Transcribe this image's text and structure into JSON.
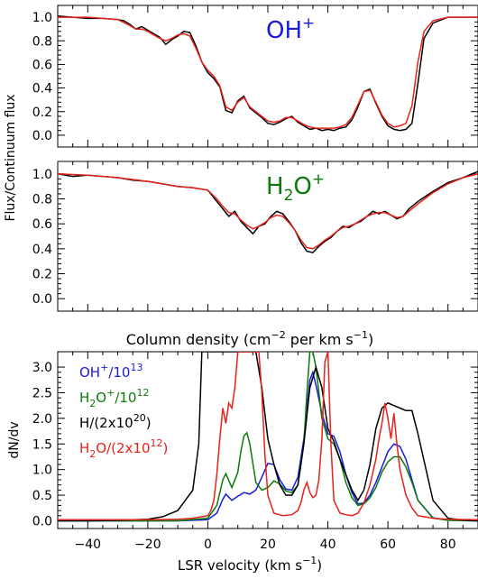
{
  "chart_data": [
    {
      "type": "line",
      "panel": "top",
      "species_label": "OH",
      "species_sup": "+",
      "label_color": "#1a1adc",
      "ylabel": "Flux/Continuum flux",
      "xlim": [
        -50,
        90
      ],
      "ylim": [
        -0.1,
        1.1
      ],
      "yticks": [
        "0.0",
        "0.2",
        "0.4",
        "0.6",
        "0.8",
        "1.0"
      ],
      "series": [
        {
          "color": "#000000",
          "x": [
            -50,
            -45,
            -40,
            -35,
            -30,
            -28,
            -26,
            -24,
            -22,
            -20,
            -18,
            -16,
            -14,
            -12,
            -10,
            -8,
            -6,
            -4,
            -2,
            0,
            2,
            4,
            6,
            8,
            10,
            12,
            14,
            16,
            18,
            20,
            22,
            24,
            26,
            28,
            30,
            32,
            34,
            36,
            38,
            40,
            42,
            44,
            46,
            48,
            50,
            52,
            54,
            56,
            58,
            60,
            62,
            64,
            66,
            68,
            70,
            72,
            75,
            80,
            85,
            90
          ],
          "y": [
            1.01,
            1.0,
            0.99,
            0.99,
            0.98,
            0.97,
            0.94,
            0.9,
            0.92,
            0.89,
            0.86,
            0.83,
            0.77,
            0.81,
            0.84,
            0.88,
            0.87,
            0.76,
            0.62,
            0.53,
            0.48,
            0.41,
            0.21,
            0.19,
            0.29,
            0.33,
            0.23,
            0.19,
            0.15,
            0.1,
            0.09,
            0.11,
            0.14,
            0.16,
            0.11,
            0.08,
            0.05,
            0.06,
            0.04,
            0.05,
            0.04,
            0.06,
            0.07,
            0.13,
            0.24,
            0.37,
            0.39,
            0.27,
            0.16,
            0.08,
            0.05,
            0.04,
            0.05,
            0.1,
            0.44,
            0.82,
            0.95,
            1.0,
            1.0,
            1.0
          ]
        },
        {
          "color": "#e8211b",
          "x": [
            -50,
            -40,
            -35,
            -30,
            -26,
            -24,
            -22,
            -20,
            -18,
            -16,
            -14,
            -12,
            -10,
            -8,
            -6,
            -4,
            -2,
            0,
            2,
            4,
            6,
            8,
            10,
            12,
            14,
            16,
            18,
            20,
            22,
            24,
            26,
            28,
            30,
            32,
            34,
            36,
            38,
            40,
            42,
            44,
            46,
            48,
            50,
            52,
            54,
            56,
            58,
            60,
            62,
            64,
            66,
            68,
            70,
            72,
            75,
            80,
            85,
            90
          ],
          "y": [
            1.0,
            1.0,
            0.99,
            0.98,
            0.93,
            0.9,
            0.9,
            0.88,
            0.85,
            0.82,
            0.8,
            0.82,
            0.85,
            0.86,
            0.84,
            0.74,
            0.62,
            0.55,
            0.5,
            0.42,
            0.24,
            0.21,
            0.28,
            0.32,
            0.24,
            0.2,
            0.16,
            0.12,
            0.11,
            0.12,
            0.15,
            0.15,
            0.12,
            0.09,
            0.07,
            0.06,
            0.06,
            0.06,
            0.06,
            0.07,
            0.09,
            0.15,
            0.26,
            0.37,
            0.38,
            0.28,
            0.17,
            0.1,
            0.07,
            0.08,
            0.1,
            0.25,
            0.62,
            0.88,
            0.97,
            1.0,
            1.0,
            1.0
          ]
        }
      ]
    },
    {
      "type": "line",
      "panel": "middle",
      "species_label": "H",
      "species_sub": "2",
      "species_label_tail": "O",
      "species_sup": "+",
      "label_color": "#0a7a0a",
      "ylabel": "Flux/Continuum flux",
      "xlim": [
        -50,
        90
      ],
      "ylim": [
        -0.1,
        1.1
      ],
      "yticks": [
        "0.0",
        "0.2",
        "0.4",
        "0.6",
        "0.8",
        "1.0"
      ],
      "series": [
        {
          "color": "#000000",
          "x": [
            -50,
            -45,
            -40,
            -35,
            -30,
            -25,
            -20,
            -15,
            -10,
            -5,
            0,
            3,
            5,
            7,
            9,
            11,
            13,
            15,
            17,
            19,
            21,
            23,
            25,
            27,
            29,
            31,
            33,
            35,
            37,
            39,
            41,
            43,
            45,
            47,
            49,
            51,
            53,
            55,
            57,
            59,
            61,
            63,
            65,
            67,
            70,
            75,
            80,
            85,
            90
          ],
          "y": [
            1.0,
            0.98,
            0.99,
            0.98,
            0.97,
            0.95,
            0.94,
            0.92,
            0.9,
            0.89,
            0.87,
            0.78,
            0.72,
            0.66,
            0.7,
            0.62,
            0.57,
            0.52,
            0.58,
            0.6,
            0.66,
            0.7,
            0.68,
            0.62,
            0.55,
            0.45,
            0.38,
            0.37,
            0.42,
            0.46,
            0.49,
            0.54,
            0.58,
            0.57,
            0.6,
            0.62,
            0.66,
            0.7,
            0.68,
            0.7,
            0.67,
            0.64,
            0.66,
            0.72,
            0.78,
            0.86,
            0.93,
            0.97,
            1.02
          ]
        },
        {
          "color": "#e8211b",
          "x": [
            -50,
            -40,
            -30,
            -20,
            -10,
            -5,
            0,
            3,
            5,
            7,
            9,
            11,
            13,
            15,
            17,
            19,
            21,
            23,
            25,
            27,
            29,
            31,
            33,
            35,
            37,
            39,
            41,
            43,
            45,
            47,
            49,
            51,
            53,
            55,
            57,
            59,
            61,
            63,
            65,
            67,
            70,
            75,
            80,
            85,
            90
          ],
          "y": [
            1.0,
            0.99,
            0.97,
            0.94,
            0.9,
            0.89,
            0.87,
            0.8,
            0.74,
            0.69,
            0.68,
            0.63,
            0.59,
            0.56,
            0.58,
            0.61,
            0.65,
            0.67,
            0.66,
            0.61,
            0.55,
            0.47,
            0.41,
            0.4,
            0.43,
            0.47,
            0.5,
            0.54,
            0.57,
            0.58,
            0.6,
            0.63,
            0.66,
            0.68,
            0.69,
            0.69,
            0.67,
            0.65,
            0.66,
            0.7,
            0.76,
            0.85,
            0.92,
            0.97,
            1.0
          ]
        }
      ]
    },
    {
      "type": "line",
      "panel": "bottom",
      "title": "Column density (cm",
      "title_sup": "−2",
      "title_tail": " per km s",
      "title_sup2": "−1",
      "title_end": ")",
      "xlabel": "LSR velocity (km s",
      "xlabel_sup": "−1",
      "xlabel_end": ")",
      "ylabel": "dN/dv",
      "xlim": [
        -50,
        90
      ],
      "ylim": [
        -0.15,
        3.3
      ],
      "xticks": [
        "−40",
        "−20",
        "0",
        "20",
        "40",
        "60",
        "80"
      ],
      "yticks": [
        "0.0",
        "0.5",
        "1.0",
        "1.5",
        "2.0",
        "2.5",
        "3.0"
      ],
      "legend": [
        {
          "text": "OH",
          "sup": "+",
          "tail": "/10",
          "tail_sup": "13",
          "end": "",
          "color": "#1a1adc"
        },
        {
          "text": "H",
          "sub": "2",
          "mid": "O",
          "sup": "+",
          "tail": "/10",
          "tail_sup": "12",
          "end": "",
          "color": "#0a7a0a"
        },
        {
          "text": "H/(2x10",
          "tail_sup": "20",
          "end": ")",
          "color": "#000000"
        },
        {
          "text": "H",
          "sub": "2",
          "mid": "O/(2x10",
          "tail_sup": "12",
          "end": ")",
          "color": "#e8211b"
        }
      ],
      "series": [
        {
          "color": "#1a1adc",
          "x": [
            -50,
            -10,
            0,
            3,
            5,
            6,
            8,
            10,
            12,
            14,
            16,
            18,
            20,
            22,
            24,
            26,
            28,
            30,
            32,
            34,
            35,
            36,
            38,
            40,
            42,
            44,
            46,
            48,
            50,
            52,
            54,
            56,
            58,
            60,
            62,
            64,
            66,
            68,
            70,
            75,
            80,
            90
          ],
          "y": [
            0.0,
            0.0,
            0.02,
            0.15,
            0.42,
            0.52,
            0.4,
            0.48,
            0.55,
            0.52,
            0.6,
            0.85,
            1.12,
            1.1,
            0.8,
            0.62,
            0.6,
            0.85,
            1.6,
            2.75,
            2.9,
            2.65,
            2.1,
            1.7,
            1.65,
            1.35,
            0.9,
            0.55,
            0.33,
            0.35,
            0.5,
            0.75,
            1.05,
            1.35,
            1.5,
            1.45,
            1.2,
            0.8,
            0.4,
            0.06,
            0.01,
            0.0
          ]
        },
        {
          "color": "#0a7a0a",
          "x": [
            -50,
            -10,
            0,
            3,
            5,
            6,
            8,
            10,
            11,
            12,
            13,
            14,
            16,
            18,
            20,
            22,
            24,
            26,
            28,
            30,
            32,
            33,
            34,
            35,
            36,
            38,
            40,
            42,
            44,
            46,
            48,
            50,
            52,
            54,
            56,
            58,
            60,
            62,
            64,
            66,
            68,
            70,
            75,
            80,
            90
          ],
          "y": [
            0.0,
            0.0,
            0.05,
            0.3,
            0.8,
            0.92,
            0.65,
            0.95,
            1.35,
            1.65,
            1.72,
            1.5,
            0.75,
            0.6,
            0.65,
            0.78,
            0.72,
            0.58,
            0.55,
            0.7,
            1.5,
            2.5,
            3.3,
            3.3,
            3.0,
            2.0,
            1.6,
            1.5,
            1.2,
            0.75,
            0.45,
            0.3,
            0.33,
            0.45,
            0.65,
            0.95,
            1.15,
            1.25,
            1.25,
            1.05,
            0.75,
            0.4,
            0.05,
            0.01,
            0.0
          ]
        },
        {
          "color": "#000000",
          "x": [
            -50,
            -40,
            -30,
            -20,
            -15,
            -10,
            -5,
            -3,
            -2,
            -1,
            0,
            2,
            4,
            6,
            8,
            10,
            12,
            14,
            16,
            18,
            20,
            22,
            24,
            26,
            28,
            30,
            32,
            34,
            36,
            38,
            40,
            42,
            44,
            46,
            48,
            50,
            52,
            54,
            56,
            58,
            60,
            62,
            64,
            66,
            68,
            70,
            75,
            80,
            85,
            90
          ],
          "y": [
            0.0,
            0.0,
            0.01,
            0.03,
            0.08,
            0.2,
            0.6,
            1.5,
            3.3,
            3.3,
            3.3,
            3.3,
            3.3,
            3.3,
            3.3,
            3.3,
            3.3,
            3.3,
            3.3,
            2.6,
            1.6,
            1.1,
            0.7,
            0.5,
            0.5,
            0.7,
            1.5,
            2.6,
            3.0,
            2.6,
            1.8,
            1.55,
            1.2,
            0.9,
            0.6,
            0.4,
            0.6,
            1.1,
            1.8,
            2.2,
            2.3,
            2.25,
            2.2,
            2.15,
            2.15,
            1.7,
            0.4,
            0.05,
            0.01,
            0.0
          ]
        },
        {
          "color": "#e8211b",
          "x": [
            -50,
            -30,
            -20,
            -10,
            -5,
            0,
            1,
            2,
            3,
            4,
            5,
            6,
            7,
            8,
            9,
            10,
            11,
            12,
            13,
            14,
            15,
            16,
            17,
            18,
            19,
            20,
            22,
            25,
            28,
            30,
            31,
            32,
            33,
            34,
            35,
            36,
            37,
            38,
            39,
            40,
            41,
            42,
            44,
            46,
            48,
            50,
            52,
            54,
            56,
            57,
            58,
            59,
            60,
            61,
            62,
            63,
            64,
            66,
            68,
            70,
            75,
            80,
            90
          ],
          "y": [
            0.02,
            0.02,
            0.02,
            0.03,
            0.05,
            0.1,
            0.2,
            0.4,
            0.9,
            1.6,
            2.2,
            1.9,
            2.3,
            2.2,
            2.6,
            3.3,
            3.3,
            3.3,
            3.3,
            3.3,
            3.3,
            3.3,
            3.3,
            2.5,
            1.3,
            0.5,
            0.15,
            0.1,
            0.12,
            0.2,
            0.35,
            0.6,
            0.75,
            0.55,
            0.45,
            0.5,
            0.8,
            1.6,
            3.1,
            3.3,
            1.5,
            0.4,
            0.15,
            0.12,
            0.1,
            0.15,
            0.35,
            0.7,
            1.2,
            1.6,
            1.9,
            2.3,
            2.0,
            1.6,
            2.1,
            1.5,
            1.0,
            0.5,
            0.25,
            0.1,
            0.05,
            0.03,
            0.02
          ]
        }
      ]
    }
  ]
}
